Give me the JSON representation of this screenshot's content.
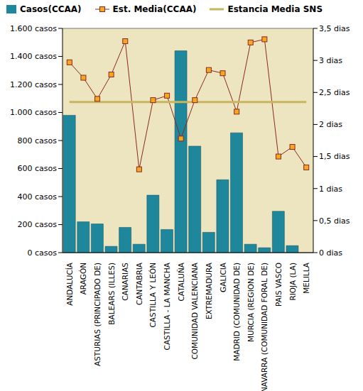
{
  "chart_data": {
    "type": "bar",
    "categories": [
      "ANDALUCÍA",
      "ARAGÓN",
      "ASTURIAS (PRINCIPADO DE)",
      "BALEARS (ILLES)",
      "CANARIAS",
      "CANTABRIA",
      "CASTILLA Y LEÓN",
      "CASTILLA - LA MANCHA",
      "CATALUÑA",
      "COMUNIDAD VALENCIANA",
      "EXTREMADURA",
      "GALICIA",
      "MADRID (COMUNIDAD DE)",
      "MURCIA (REGION DE)",
      "NAVARRA (COMUNIDAD FORAL DE)",
      "PAIS VASCO",
      "RIOJA (LA)",
      "MELILLA"
    ],
    "series": [
      {
        "name": "Casos(CCAA)",
        "type": "bar",
        "color": "#1f879b",
        "values": [
          980,
          220,
          205,
          45,
          180,
          60,
          410,
          165,
          1440,
          760,
          145,
          520,
          855,
          60,
          35,
          295,
          50,
          0
        ]
      },
      {
        "name": "Est. Media(CCAA)",
        "type": "line",
        "axis": "y2",
        "color": "#8b2a1e",
        "marker": "square",
        "values": [
          2.97,
          2.73,
          2.4,
          2.78,
          3.3,
          1.3,
          2.38,
          2.45,
          1.78,
          2.38,
          2.85,
          2.8,
          2.2,
          3.28,
          3.33,
          1.5,
          1.65,
          1.33
        ]
      },
      {
        "name": "Estancia Media SNS",
        "type": "line",
        "axis": "y2",
        "color": "#c8b560",
        "line_style": "solid",
        "values": [
          2.35,
          2.35,
          2.35,
          2.35,
          2.35,
          2.35,
          2.35,
          2.35,
          2.35,
          2.35,
          2.35,
          2.35,
          2.35,
          2.35,
          2.35,
          2.35,
          2.35,
          2.35
        ]
      }
    ],
    "ylim": [
      0,
      1600
    ],
    "yticks": [
      {
        "value": 0,
        "label": "0 casos"
      },
      {
        "value": 200,
        "label": "200 casos"
      },
      {
        "value": 400,
        "label": "400 casos"
      },
      {
        "value": 600,
        "label": "600 casos"
      },
      {
        "value": 800,
        "label": "800 casos"
      },
      {
        "value": 1000,
        "label": "1.000 casos"
      },
      {
        "value": 1200,
        "label": "1.200 casos"
      },
      {
        "value": 1400,
        "label": "1.400 casos"
      },
      {
        "value": 1600,
        "label": "1.600 casos"
      }
    ],
    "y2lim": [
      0,
      3.5
    ],
    "y2ticks": [
      {
        "value": 0,
        "label": "0 dias"
      },
      {
        "value": 0.5,
        "label": "0,5 dias"
      },
      {
        "value": 1,
        "label": "1 dias"
      },
      {
        "value": 1.5,
        "label": "1,5 dias"
      },
      {
        "value": 2,
        "label": "2 dias"
      },
      {
        "value": 2.5,
        "label": "2,5 dias"
      },
      {
        "value": 3,
        "label": "3 dias"
      },
      {
        "value": 3.5,
        "label": "3,5 dias"
      }
    ],
    "grid": true,
    "legend": "top"
  }
}
